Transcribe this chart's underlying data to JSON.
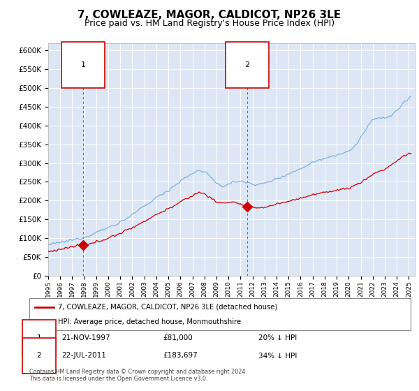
{
  "title": "7, COWLEAZE, MAGOR, CALDICOT, NP26 3LE",
  "subtitle": "Price paid vs. HM Land Registry's House Price Index (HPI)",
  "title_fontsize": 11,
  "subtitle_fontsize": 9,
  "background_color": "#ffffff",
  "plot_bg_color": "#dce6f5",
  "grid_color": "#ffffff",
  "ylim": [
    0,
    620000
  ],
  "yticks": [
    0,
    50000,
    100000,
    150000,
    200000,
    250000,
    300000,
    350000,
    400000,
    450000,
    500000,
    550000,
    600000
  ],
  "ytick_labels": [
    "£0",
    "£50K",
    "£100K",
    "£150K",
    "£200K",
    "£250K",
    "£300K",
    "£350K",
    "£400K",
    "£450K",
    "£500K",
    "£550K",
    "£600K"
  ],
  "hpi_color": "#7ab4d8",
  "price_color": "#cc0000",
  "sale1_x": 1997.9,
  "sale1_y": 81000,
  "sale1_label": "1",
  "sale1_date": "21-NOV-1997",
  "sale1_price": "£81,000",
  "sale1_hpi": "20% ↓ HPI",
  "sale2_x": 2011.55,
  "sale2_y": 183697,
  "sale2_label": "2",
  "sale2_date": "22-JUL-2011",
  "sale2_price": "£183,697",
  "sale2_hpi": "34% ↓ HPI",
  "legend_line1": "7, COWLEAZE, MAGOR, CALDICOT, NP26 3LE (detached house)",
  "legend_line2": "HPI: Average price, detached house, Monmouthshire",
  "footnote": "Contains HM Land Registry data © Crown copyright and database right 2024.\nThis data is licensed under the Open Government Licence v3.0.",
  "xmin": 1995.0,
  "xmax": 2025.5
}
